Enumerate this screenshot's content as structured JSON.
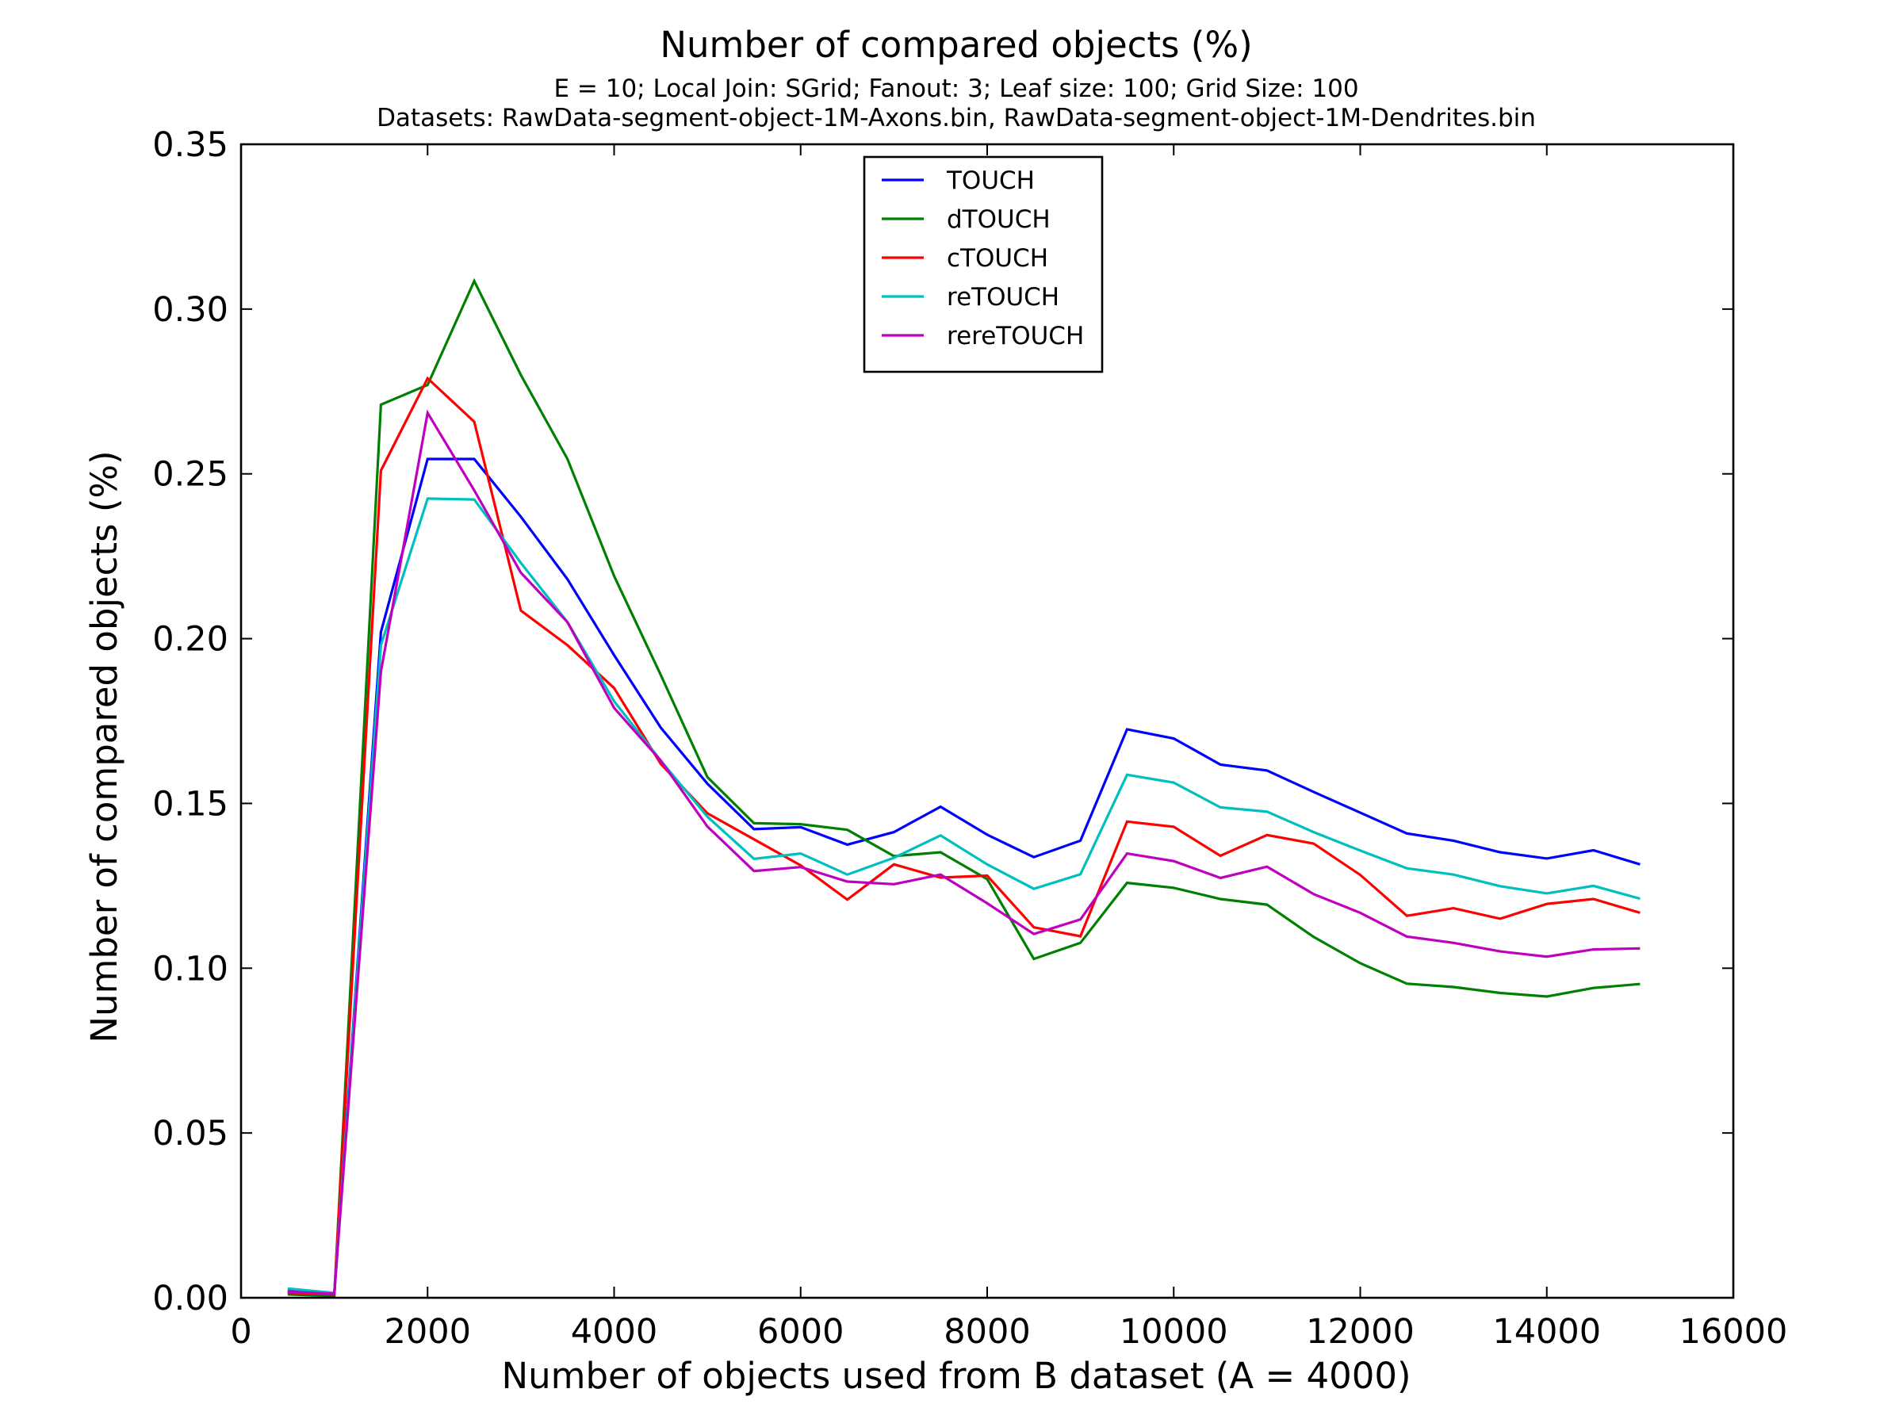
{
  "chart_data": {
    "type": "line",
    "title": "Number of compared objects (%)",
    "subtitle_lines": [
      "E = 10; Local Join: SGrid; Fanout: 3; Leaf size: 100; Grid Size: 100",
      "Datasets: RawData-segment-object-1M-Axons.bin, RawData-segment-object-1M-Dendrites.bin"
    ],
    "xlabel": "Number of objects used from B dataset (A = 4000)",
    "ylabel": "Number of compared objects (%)",
    "xlim": [
      0,
      16000
    ],
    "ylim": [
      0,
      0.35
    ],
    "xticks": [
      0,
      2000,
      4000,
      6000,
      8000,
      10000,
      12000,
      14000,
      16000
    ],
    "xtick_labels": [
      "0",
      "2000",
      "4000",
      "6000",
      "8000",
      "10000",
      "12000",
      "14000",
      "16000"
    ],
    "yticks": [
      0,
      0.05,
      0.1,
      0.15,
      0.2,
      0.25,
      0.3,
      0.35
    ],
    "ytick_labels": [
      "0.00",
      "0.05",
      "0.10",
      "0.15",
      "0.20",
      "0.25",
      "0.30",
      "0.35"
    ],
    "grid": false,
    "legend_position": "top-center",
    "x": [
      500,
      1000,
      1500,
      2000,
      2500,
      3000,
      3500,
      4000,
      4500,
      5000,
      5500,
      6000,
      6500,
      7000,
      7500,
      8000,
      8500,
      9000,
      9500,
      10000,
      10500,
      11000,
      11500,
      12000,
      12500,
      13000,
      13500,
      14000,
      14500,
      15000
    ],
    "series": [
      {
        "name": "TOUCH",
        "color": "#0000ff",
        "values": [
          0.002,
          0.001,
          0.202,
          0.2545,
          0.2545,
          0.237,
          0.218,
          0.195,
          0.173,
          0.156,
          0.1422,
          0.1428,
          0.1375,
          0.1413,
          0.149,
          0.1405,
          0.1337,
          0.1387,
          0.1725,
          0.1697,
          0.1618,
          0.16,
          0.1535,
          0.1472,
          0.1409,
          0.1387,
          0.1352,
          0.1333,
          0.1358,
          0.1315
        ]
      },
      {
        "name": "dTOUCH",
        "color": "#008000",
        "values": [
          0.001,
          0.0005,
          0.271,
          0.277,
          0.3085,
          0.28,
          0.2545,
          0.219,
          0.189,
          0.158,
          0.144,
          0.1437,
          0.142,
          0.134,
          0.1352,
          0.127,
          0.1028,
          0.1077,
          0.1259,
          0.1244,
          0.121,
          0.1193,
          0.1095,
          0.1015,
          0.0953,
          0.0943,
          0.0925,
          0.0914,
          0.094,
          0.0952
        ]
      },
      {
        "name": "cTOUCH",
        "color": "#ff0000",
        "values": [
          0.0015,
          0.001,
          0.251,
          0.279,
          0.2658,
          0.2085,
          0.198,
          0.185,
          0.162,
          0.147,
          0.1391,
          0.1312,
          0.1208,
          0.1315,
          0.1275,
          0.1281,
          0.1124,
          0.1097,
          0.1445,
          0.1429,
          0.1341,
          0.1404,
          0.1378,
          0.1283,
          0.1159,
          0.1182,
          0.115,
          0.1195,
          0.121,
          0.1168
        ]
      },
      {
        "name": "reTOUCH",
        "color": "#00bfbf",
        "values": [
          0.0028,
          0.0015,
          0.198,
          0.2425,
          0.2422,
          0.223,
          0.205,
          0.181,
          0.163,
          0.146,
          0.1332,
          0.1348,
          0.1284,
          0.1335,
          0.1403,
          0.1315,
          0.1241,
          0.1285,
          0.1587,
          0.1563,
          0.1488,
          0.1475,
          0.1413,
          0.1357,
          0.1303,
          0.1284,
          0.1249,
          0.1227,
          0.125,
          0.1211
        ]
      },
      {
        "name": "rereTOUCH",
        "color": "#bf00bf",
        "values": [
          0.0018,
          0.0012,
          0.19,
          0.2685,
          0.245,
          0.22,
          0.205,
          0.179,
          0.163,
          0.143,
          0.1295,
          0.1307,
          0.1263,
          0.1255,
          0.1284,
          0.1197,
          0.1104,
          0.1148,
          0.1348,
          0.1325,
          0.1274,
          0.1308,
          0.1225,
          0.1168,
          0.1096,
          0.1077,
          0.1051,
          0.1035,
          0.1057,
          0.106
        ]
      }
    ]
  }
}
